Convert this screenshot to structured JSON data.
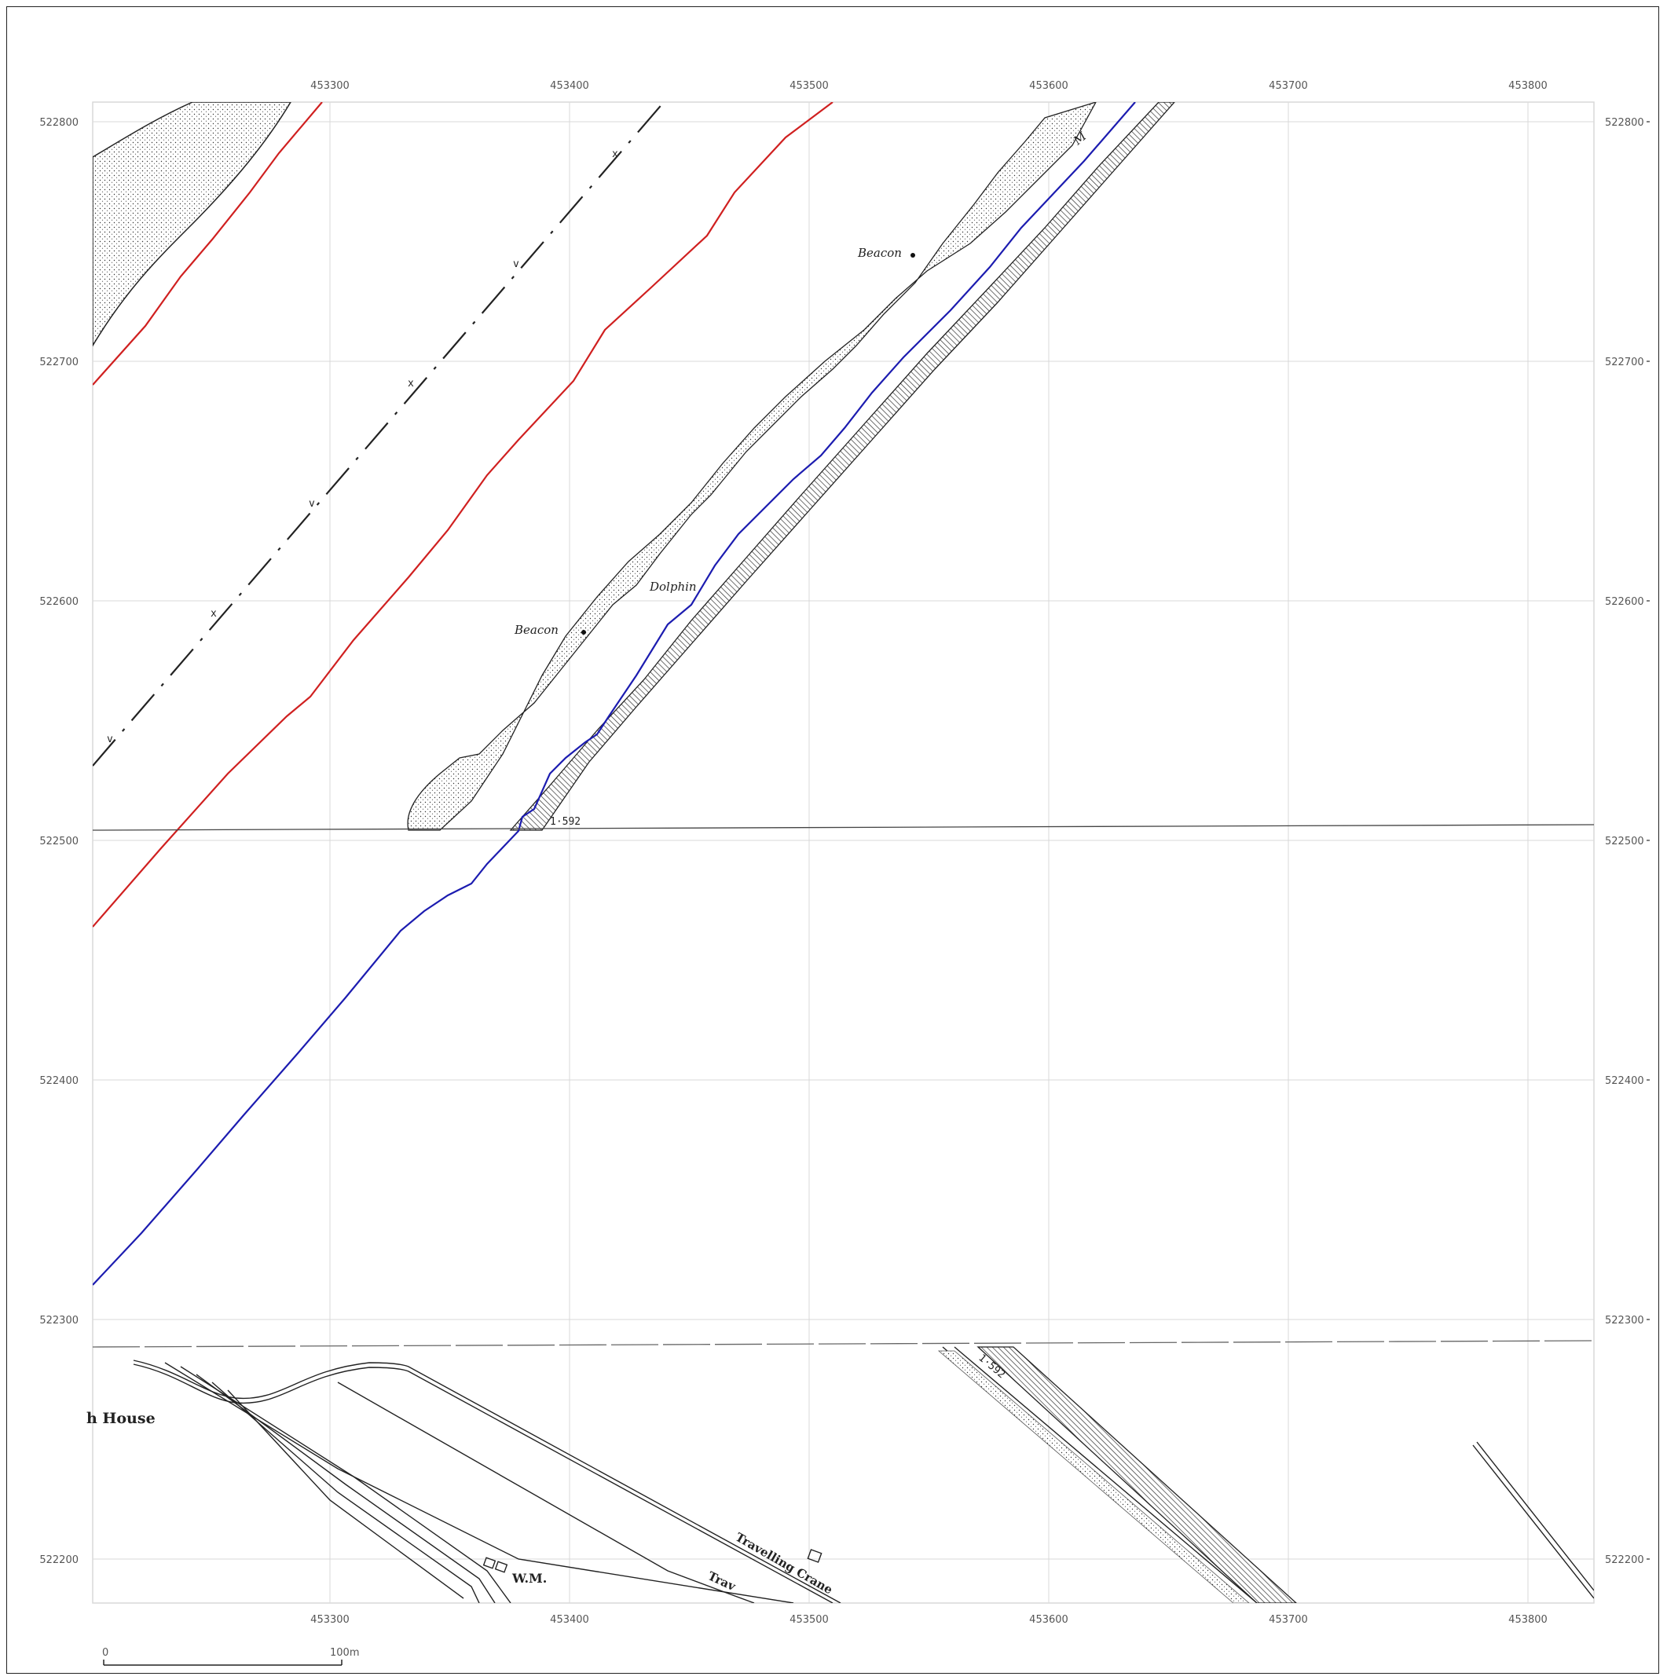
{
  "map": {
    "easting_labels": [
      "453300",
      "453400",
      "453500",
      "453600",
      "453700",
      "453800"
    ],
    "northing_labels_left": [
      "522800",
      "522700",
      "522600",
      "522500",
      "522400",
      "522300",
      "522200"
    ],
    "northing_labels_right": [
      "522800",
      "522700",
      "522600",
      "522500",
      "522400",
      "522300",
      "522200"
    ],
    "features": {
      "beacon_upper": "Beacon",
      "beacon_lower": "Beacon",
      "dolphin": "Dolphin",
      "level_upper": "1·592",
      "level_lower": "1·592",
      "house": "h House",
      "wm": "W.M.",
      "travelling_crane": "Travelling Crane",
      "travelling_crane_2": "Trav",
      "m_mark": "M",
      "survey_v": "v",
      "survey_x": "x"
    },
    "scale_bar": {
      "start_label": "0",
      "end_label": "100m"
    },
    "colors": {
      "grid": "#d9d9d9",
      "red_line": "#d02020",
      "blue_line": "#1c1cb0",
      "ink": "#222222"
    }
  }
}
